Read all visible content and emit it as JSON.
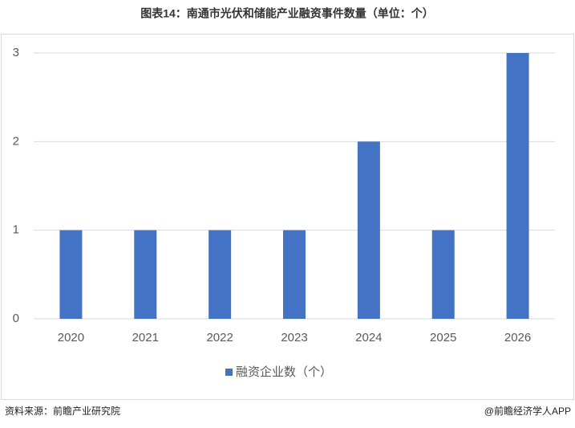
{
  "chart_data": {
    "type": "bar",
    "title": "图表14：南通市光伏和储能产业融资事件数量（单位：个）",
    "categories": [
      "2020",
      "2021",
      "2022",
      "2023",
      "2024",
      "2025",
      "2026"
    ],
    "series": [
      {
        "name": "融资企业数（个）",
        "color": "#4472c4",
        "values": [
          1,
          1,
          1,
          1,
          2,
          1,
          3
        ]
      }
    ],
    "ylim": [
      0,
      3
    ],
    "yticks": [
      0,
      1,
      2,
      3
    ],
    "grid": true,
    "legend": "bottom",
    "source": "资料来源：前瞻产业研究院",
    "credit": "@前瞻经济学人APP"
  }
}
